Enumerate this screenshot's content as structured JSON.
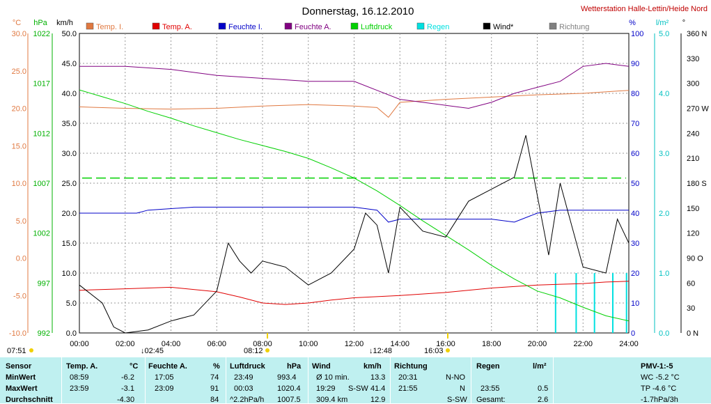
{
  "title": "Donnerstag, 16.12.2010",
  "station": "Wetterstation Halle-Lettin/Heide Nord",
  "legend": [
    {
      "label": "Temp. I.",
      "color": "#e07840"
    },
    {
      "label": "Temp. A.",
      "color": "#e00000"
    },
    {
      "label": "Feuchte I.",
      "color": "#0000c8"
    },
    {
      "label": "Feuchte A.",
      "color": "#800080"
    },
    {
      "label": "Luftdruck",
      "color": "#00d000"
    },
    {
      "label": "Regen",
      "color": "#00e0e0"
    },
    {
      "label": "Wind*",
      "color": "#000000"
    },
    {
      "label": "Richtung",
      "color": "#808080"
    }
  ],
  "axis_units": {
    "temp": "°C",
    "pressure": "hPa",
    "wind": "km/h",
    "humidity": "%",
    "rain": "l/m²",
    "direction": "°"
  },
  "time_markers": {
    "sunrise": "07:51",
    "sunset": "16:03",
    "m1": "↓02:45",
    "m2": "08:12",
    "m3": "↓12:48"
  },
  "chart_data": {
    "type": "line",
    "x_ticks": [
      "00:00",
      "02:00",
      "04:00",
      "06:00",
      "08:00",
      "10:00",
      "12:00",
      "14:00",
      "16:00",
      "18:00",
      "20:00",
      "22:00",
      "24:00"
    ],
    "axes": {
      "temp": {
        "range": [
          -10,
          30
        ],
        "ticks": [
          "30.0",
          "25.0",
          "20.0",
          "15.0",
          "10.0",
          "5.0",
          "0.0",
          "-5.0",
          "-10.0"
        ],
        "color": "#e07840"
      },
      "pressure": {
        "range": [
          992,
          1027
        ],
        "ticks": [
          "1022",
          "1017",
          "1012",
          "1007",
          "1002",
          "997",
          "992"
        ],
        "color": "#00b000"
      },
      "wind": {
        "range": [
          0,
          50
        ],
        "ticks": [
          "50.0",
          "45.0",
          "40.0",
          "35.0",
          "30.0",
          "25.0",
          "20.0",
          "15.0",
          "10.0",
          "5.0",
          "0.0"
        ],
        "color": "#000000"
      },
      "humidity": {
        "range": [
          0,
          100
        ],
        "ticks": [
          "100",
          "90",
          "80",
          "70",
          "60",
          "50",
          "40",
          "30",
          "20",
          "10",
          "0"
        ],
        "color": "#0000c8"
      },
      "rain": {
        "range": [
          0,
          5
        ],
        "ticks": [
          "5.0",
          "4.0",
          "3.0",
          "2.0",
          "1.0",
          "0.0"
        ],
        "color": "#00c0c0"
      },
      "direction": {
        "range": [
          0,
          360
        ],
        "ticks": [
          "360 N",
          "330",
          "300",
          "270 W",
          "240",
          "210",
          "180 S",
          "150",
          "120",
          "90 O",
          "60",
          "30",
          "0 N"
        ],
        "color": "#000000"
      }
    },
    "series": [
      {
        "name": "Temp. I.",
        "axis": "temp",
        "points": [
          [
            0,
            20.2
          ],
          [
            2,
            20.0
          ],
          [
            4,
            19.9
          ],
          [
            6,
            20.0
          ],
          [
            8,
            20.3
          ],
          [
            10,
            20.5
          ],
          [
            12,
            20.3
          ],
          [
            13,
            20.1
          ],
          [
            13.5,
            18.8
          ],
          [
            14,
            20.8
          ],
          [
            16,
            21.2
          ],
          [
            18,
            21.5
          ],
          [
            20,
            21.8
          ],
          [
            22,
            22.0
          ],
          [
            24,
            22.4
          ]
        ]
      },
      {
        "name": "Temp. A.",
        "axis": "temp",
        "points": [
          [
            0,
            -4.3
          ],
          [
            2,
            -4.1
          ],
          [
            4,
            -3.9
          ],
          [
            6,
            -4.5
          ],
          [
            7,
            -5.2
          ],
          [
            8,
            -6.0
          ],
          [
            9,
            -6.2
          ],
          [
            10,
            -6.0
          ],
          [
            11,
            -5.6
          ],
          [
            12,
            -5.3
          ],
          [
            14,
            -5.0
          ],
          [
            16,
            -4.6
          ],
          [
            18,
            -4.0
          ],
          [
            20,
            -3.6
          ],
          [
            21,
            -3.5
          ],
          [
            22,
            -3.4
          ],
          [
            23,
            -3.2
          ],
          [
            24,
            -3.1
          ]
        ]
      },
      {
        "name": "Feuchte I.",
        "axis": "humidity",
        "points": [
          [
            0,
            40
          ],
          [
            2.5,
            40
          ],
          [
            3,
            41
          ],
          [
            5,
            42
          ],
          [
            7,
            42
          ],
          [
            10,
            42
          ],
          [
            12,
            42
          ],
          [
            13,
            41
          ],
          [
            13.5,
            37
          ],
          [
            14,
            38
          ],
          [
            16,
            38
          ],
          [
            18,
            38
          ],
          [
            19,
            37
          ],
          [
            20,
            40
          ],
          [
            21,
            41
          ],
          [
            24,
            41
          ]
        ]
      },
      {
        "name": "Feuchte A.",
        "axis": "humidity",
        "points": [
          [
            0,
            89
          ],
          [
            2,
            89
          ],
          [
            4,
            88
          ],
          [
            6,
            86
          ],
          [
            8,
            85
          ],
          [
            10,
            84
          ],
          [
            12,
            84
          ],
          [
            13,
            81
          ],
          [
            14,
            78
          ],
          [
            16,
            76
          ],
          [
            17,
            75
          ],
          [
            18,
            77
          ],
          [
            19,
            80
          ],
          [
            20,
            82
          ],
          [
            21,
            84
          ],
          [
            22,
            89
          ],
          [
            23,
            90
          ],
          [
            24,
            89
          ]
        ]
      },
      {
        "name": "Luftdruck",
        "axis": "pressure",
        "points": [
          [
            0,
            1020.4
          ],
          [
            1,
            1019.6
          ],
          [
            2,
            1018.8
          ],
          [
            3,
            1017.9
          ],
          [
            4,
            1017.1
          ],
          [
            5,
            1016.2
          ],
          [
            6,
            1015.4
          ],
          [
            7,
            1014.6
          ],
          [
            8,
            1013.9
          ],
          [
            9,
            1013.2
          ],
          [
            10,
            1012.4
          ],
          [
            11,
            1011.3
          ],
          [
            12,
            1010.1
          ],
          [
            13,
            1008.6
          ],
          [
            14,
            1006.9
          ],
          [
            15,
            1005.1
          ],
          [
            16,
            1003.4
          ],
          [
            17,
            1001.7
          ],
          [
            18,
            999.9
          ],
          [
            19,
            998.3
          ],
          [
            20,
            996.9
          ],
          [
            21,
            996.1
          ],
          [
            22,
            995.0
          ],
          [
            23,
            994.0
          ],
          [
            24,
            993.4
          ]
        ]
      },
      {
        "name": "Wind*",
        "axis": "wind",
        "points": [
          [
            0,
            8
          ],
          [
            1,
            5
          ],
          [
            1.5,
            1
          ],
          [
            2,
            0
          ],
          [
            3,
            0.5
          ],
          [
            4,
            2
          ],
          [
            5,
            3
          ],
          [
            6,
            7
          ],
          [
            6.5,
            15
          ],
          [
            7,
            12
          ],
          [
            7.5,
            10
          ],
          [
            8,
            12
          ],
          [
            9,
            11
          ],
          [
            10,
            8
          ],
          [
            11,
            10
          ],
          [
            12,
            14
          ],
          [
            12.5,
            20
          ],
          [
            13,
            18
          ],
          [
            13.5,
            10
          ],
          [
            14,
            21
          ],
          [
            15,
            17
          ],
          [
            16,
            16
          ],
          [
            17,
            22
          ],
          [
            18,
            24
          ],
          [
            19,
            26
          ],
          [
            19.5,
            33
          ],
          [
            20,
            23
          ],
          [
            20.5,
            13
          ],
          [
            21,
            25
          ],
          [
            21.5,
            18
          ],
          [
            22,
            11
          ],
          [
            23,
            10
          ],
          [
            23.5,
            19
          ],
          [
            24,
            15
          ]
        ]
      }
    ],
    "rain_bars": [
      [
        20.8,
        1.0
      ],
      [
        21.7,
        1.0
      ],
      [
        22.5,
        1.0
      ],
      [
        23.3,
        1.0
      ],
      [
        23.9,
        1.0
      ]
    ],
    "pressure_ref": 1010.1
  },
  "table": {
    "row_labels": [
      "Sensor",
      "MinWert",
      "MaxWert",
      "Durchschnitt"
    ],
    "temp": {
      "head": "Temp. A.",
      "unit": "°C",
      "rows": [
        [
          "08:59",
          "-6.2"
        ],
        [
          "23:59",
          "-3.1"
        ],
        [
          "",
          "-4.30"
        ]
      ]
    },
    "hum": {
      "head": "Feuchte A.",
      "unit": "%",
      "rows": [
        [
          "17:05",
          "74"
        ],
        [
          "23:09",
          "91"
        ],
        [
          "",
          "84"
        ]
      ]
    },
    "press": {
      "head": "Luftdruck",
      "unit": "hPa",
      "rows": [
        [
          "23:49",
          "993.4"
        ],
        [
          "00:03",
          "1020.4"
        ],
        [
          "^2.2hPa/h",
          "1007.5"
        ]
      ]
    },
    "wind": {
      "head": "Wind",
      "unit": "km/h",
      "rows": [
        [
          "Ø 10 min.",
          "",
          "13.3"
        ],
        [
          "19:29",
          "S-SW",
          "41.4"
        ],
        [
          "309.4 km",
          "",
          "12.9"
        ]
      ]
    },
    "dir": {
      "head": "Richtung",
      "rows": [
        [
          "20:31",
          "N-NO"
        ],
        [
          "21:55",
          "N"
        ],
        [
          "",
          "S-SW"
        ]
      ]
    },
    "rain": {
      "head": "Regen",
      "unit": "l/m²",
      "rows": [
        [
          "",
          ""
        ],
        [
          "23:55",
          "0.5"
        ],
        [
          "Gesamt:",
          "2.6"
        ]
      ]
    },
    "pmv": {
      "head": "PMV-1:-5",
      "rows": [
        "WC -5.2 °C",
        "TP -4.6 °C",
        "-1.7hPa/3h"
      ]
    }
  }
}
